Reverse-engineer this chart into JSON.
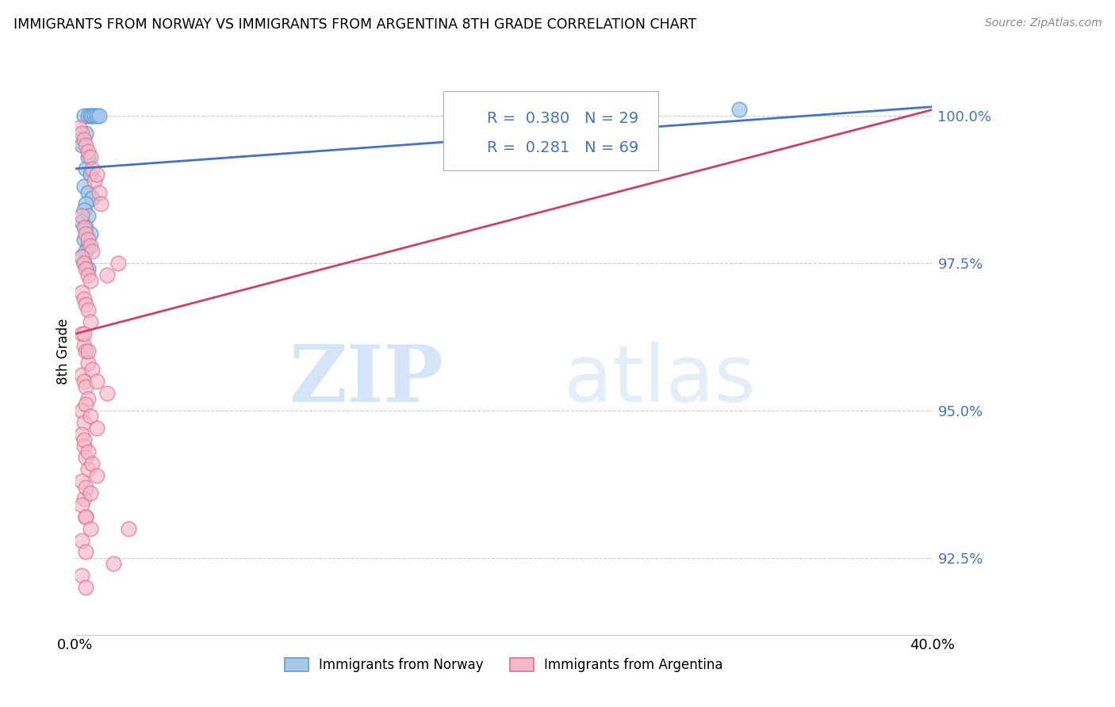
{
  "title": "IMMIGRANTS FROM NORWAY VS IMMIGRANTS FROM ARGENTINA 8TH GRADE CORRELATION CHART",
  "source": "Source: ZipAtlas.com",
  "ylabel": "8th Grade",
  "ylabel_right_ticks": [
    92.5,
    95.0,
    97.5,
    100.0
  ],
  "ylabel_right_labels": [
    "92.5%",
    "95.0%",
    "97.5%",
    "100.0%"
  ],
  "xmin": 0.0,
  "xmax": 40.0,
  "ymin": 91.2,
  "ymax": 100.8,
  "norway_color": "#a8c8e8",
  "norway_edge_color": "#5b9bd5",
  "argentina_color": "#f4b8c8",
  "argentina_edge_color": "#e07090",
  "norway_R": 0.38,
  "norway_N": 29,
  "argentina_R": 0.281,
  "argentina_N": 69,
  "legend_norway": "Immigrants from Norway",
  "legend_argentina": "Immigrants from Argentina",
  "watermark_zip": "ZIP",
  "watermark_atlas": "atlas",
  "grid_color": "#cccccc",
  "background_color": "#ffffff",
  "trendline_norway_color": "#4472c4",
  "trendline_argentina_color": "#d04060",
  "norway_x": [
    0.4,
    0.6,
    0.7,
    0.8,
    0.9,
    1.0,
    1.1,
    0.5,
    0.3,
    0.6,
    0.5,
    0.7,
    0.4,
    0.6,
    0.8,
    0.5,
    0.4,
    0.6,
    0.3,
    0.5,
    0.7,
    0.4,
    0.6,
    0.5,
    0.3,
    0.4,
    0.6,
    20.5,
    31.0
  ],
  "norway_y": [
    100.0,
    100.0,
    100.0,
    100.0,
    100.0,
    100.0,
    100.0,
    99.7,
    99.5,
    99.3,
    99.1,
    99.0,
    98.8,
    98.7,
    98.6,
    98.5,
    98.4,
    98.3,
    98.2,
    98.1,
    98.0,
    97.9,
    97.8,
    97.7,
    97.6,
    97.5,
    97.4,
    100.0,
    100.1
  ],
  "argentina_x": [
    0.2,
    0.3,
    0.4,
    0.5,
    0.6,
    0.7,
    0.8,
    0.9,
    1.0,
    1.1,
    1.2,
    0.3,
    0.4,
    0.5,
    0.6,
    0.7,
    0.8,
    0.3,
    0.4,
    0.5,
    0.6,
    0.7,
    0.3,
    0.4,
    0.5,
    0.6,
    0.7,
    0.3,
    0.4,
    0.5,
    0.6,
    0.3,
    0.4,
    0.5,
    0.6,
    0.3,
    0.4,
    1.5,
    2.0,
    0.3,
    0.4,
    0.5,
    0.6,
    0.3,
    0.4,
    0.5,
    2.5,
    0.4,
    0.6,
    0.8,
    1.0,
    1.5,
    0.5,
    0.7,
    1.0,
    0.4,
    0.6,
    0.8,
    1.0,
    0.5,
    0.7,
    0.3,
    0.5,
    0.7,
    0.3,
    0.5,
    1.8,
    0.3,
    0.5
  ],
  "argentina_y": [
    99.8,
    99.7,
    99.6,
    99.5,
    99.4,
    99.3,
    99.1,
    98.9,
    99.0,
    98.7,
    98.5,
    98.3,
    98.1,
    98.0,
    97.9,
    97.8,
    97.7,
    97.6,
    97.5,
    97.4,
    97.3,
    97.2,
    97.0,
    96.9,
    96.8,
    96.7,
    96.5,
    96.3,
    96.1,
    96.0,
    95.8,
    95.6,
    95.5,
    95.4,
    95.2,
    95.0,
    94.8,
    97.3,
    97.5,
    94.6,
    94.4,
    94.2,
    94.0,
    93.8,
    93.5,
    93.2,
    93.0,
    96.3,
    96.0,
    95.7,
    95.5,
    95.3,
    95.1,
    94.9,
    94.7,
    94.5,
    94.3,
    94.1,
    93.9,
    93.7,
    93.6,
    93.4,
    93.2,
    93.0,
    92.8,
    92.6,
    92.4,
    92.2,
    92.0
  ]
}
